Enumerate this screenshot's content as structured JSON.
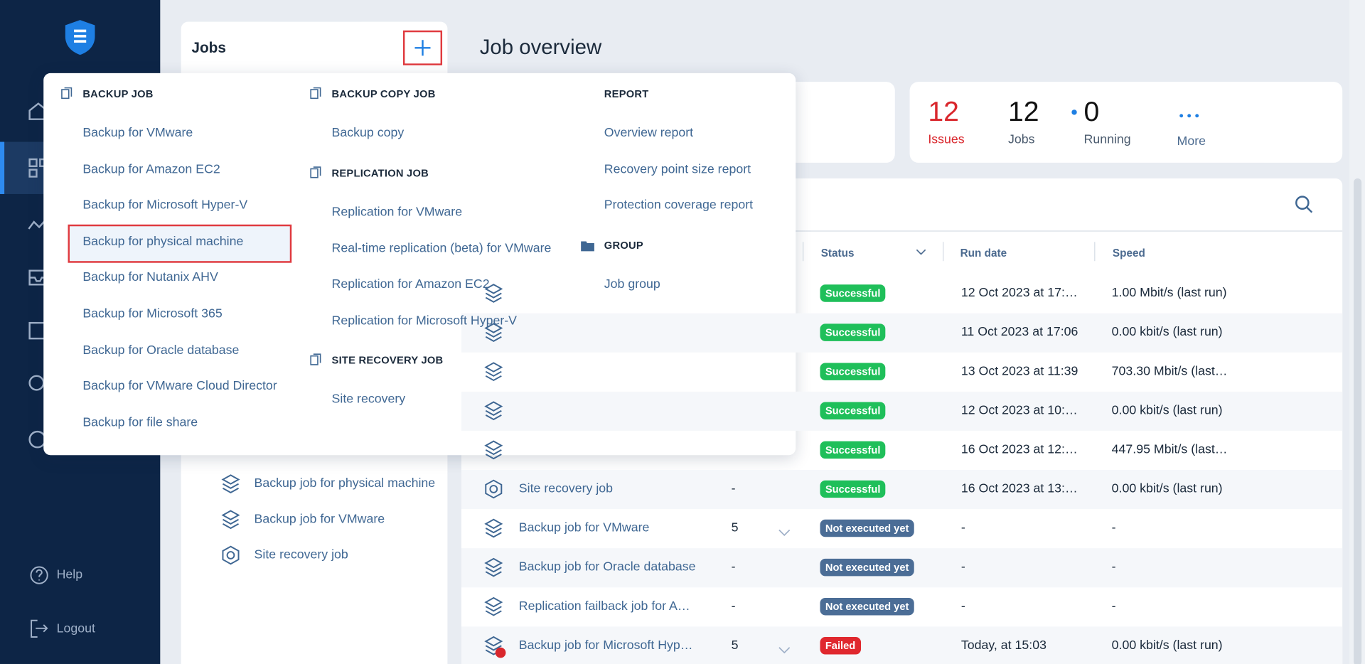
{
  "sidebar": {
    "help": "Help",
    "logout": "Logout"
  },
  "jobs_panel": {
    "title": "Jobs",
    "items": [
      "Backup job for physical machine",
      "Backup job for VMware",
      "Site recovery job"
    ]
  },
  "menu": {
    "backup_job": {
      "title": "BACKUP JOB",
      "items": [
        "Backup for VMware",
        "Backup for Amazon EC2",
        "Backup for Microsoft Hyper-V",
        "Backup for physical machine",
        "Backup for Nutanix AHV",
        "Backup for Microsoft 365",
        "Backup for Oracle database",
        "Backup for VMware Cloud Director",
        "Backup for file share"
      ]
    },
    "backup_copy_job": {
      "title": "BACKUP COPY JOB",
      "items": [
        "Backup copy"
      ]
    },
    "replication_job": {
      "title": "REPLICATION JOB",
      "items": [
        "Replication for VMware",
        "Real-time replication (beta) for VMware",
        "Replication for Amazon EC2",
        "Replication for Microsoft Hyper-V"
      ]
    },
    "site_recovery_job": {
      "title": "SITE RECOVERY JOB",
      "items": [
        "Site recovery"
      ]
    },
    "report": {
      "title": "REPORT",
      "items": [
        "Overview report",
        "Recovery point size report",
        "Protection coverage report"
      ]
    },
    "group": {
      "title": "GROUP",
      "items": [
        "Job group"
      ]
    }
  },
  "overview": {
    "title": "Job overview",
    "stats": [
      {
        "value": "12",
        "label": "Issues"
      },
      {
        "value": "12",
        "label": "Jobs"
      },
      {
        "value": "0",
        "label": "Running"
      }
    ],
    "more": "More"
  },
  "table": {
    "headers": [
      "Status",
      "Run date",
      "Speed"
    ],
    "rows": [
      {
        "status": "Successful",
        "run_date": "12 Oct 2023 at 17:…",
        "speed": "1.00 Mbit/s (last run)"
      },
      {
        "status": "Successful",
        "run_date": "11 Oct 2023 at 17:06",
        "speed": "0.00 kbit/s (last run)"
      },
      {
        "status": "Successful",
        "run_date": "13 Oct 2023 at 11:39",
        "speed": "703.30 Mbit/s (last…"
      },
      {
        "status": "Successful",
        "run_date": "12 Oct 2023 at 10:…",
        "speed": "0.00 kbit/s (last run)"
      },
      {
        "status": "Successful",
        "run_date": "16 Oct 2023 at 12:…",
        "speed": "447.95 Mbit/s (last…"
      },
      {
        "name": "Site recovery job",
        "count": "-",
        "status": "Successful",
        "run_date": "16 Oct 2023 at 13:…",
        "speed": "0.00 kbit/s (last run)"
      },
      {
        "name": "Backup job for VMware",
        "count": "5",
        "status": "Not executed yet",
        "run_date": "-",
        "speed": "-"
      },
      {
        "name": "Backup job for Oracle database",
        "count": "-",
        "status": "Not executed yet",
        "run_date": "-",
        "speed": "-"
      },
      {
        "name": "Replication failback job for A…",
        "count": "-",
        "status": "Not executed yet",
        "run_date": "-",
        "speed": "-"
      },
      {
        "name": "Backup job for Microsoft Hyp…",
        "count": "5",
        "status": "Failed",
        "run_date": "Today, at 15:03",
        "speed": "0.00 kbit/s (last run)"
      }
    ]
  }
}
